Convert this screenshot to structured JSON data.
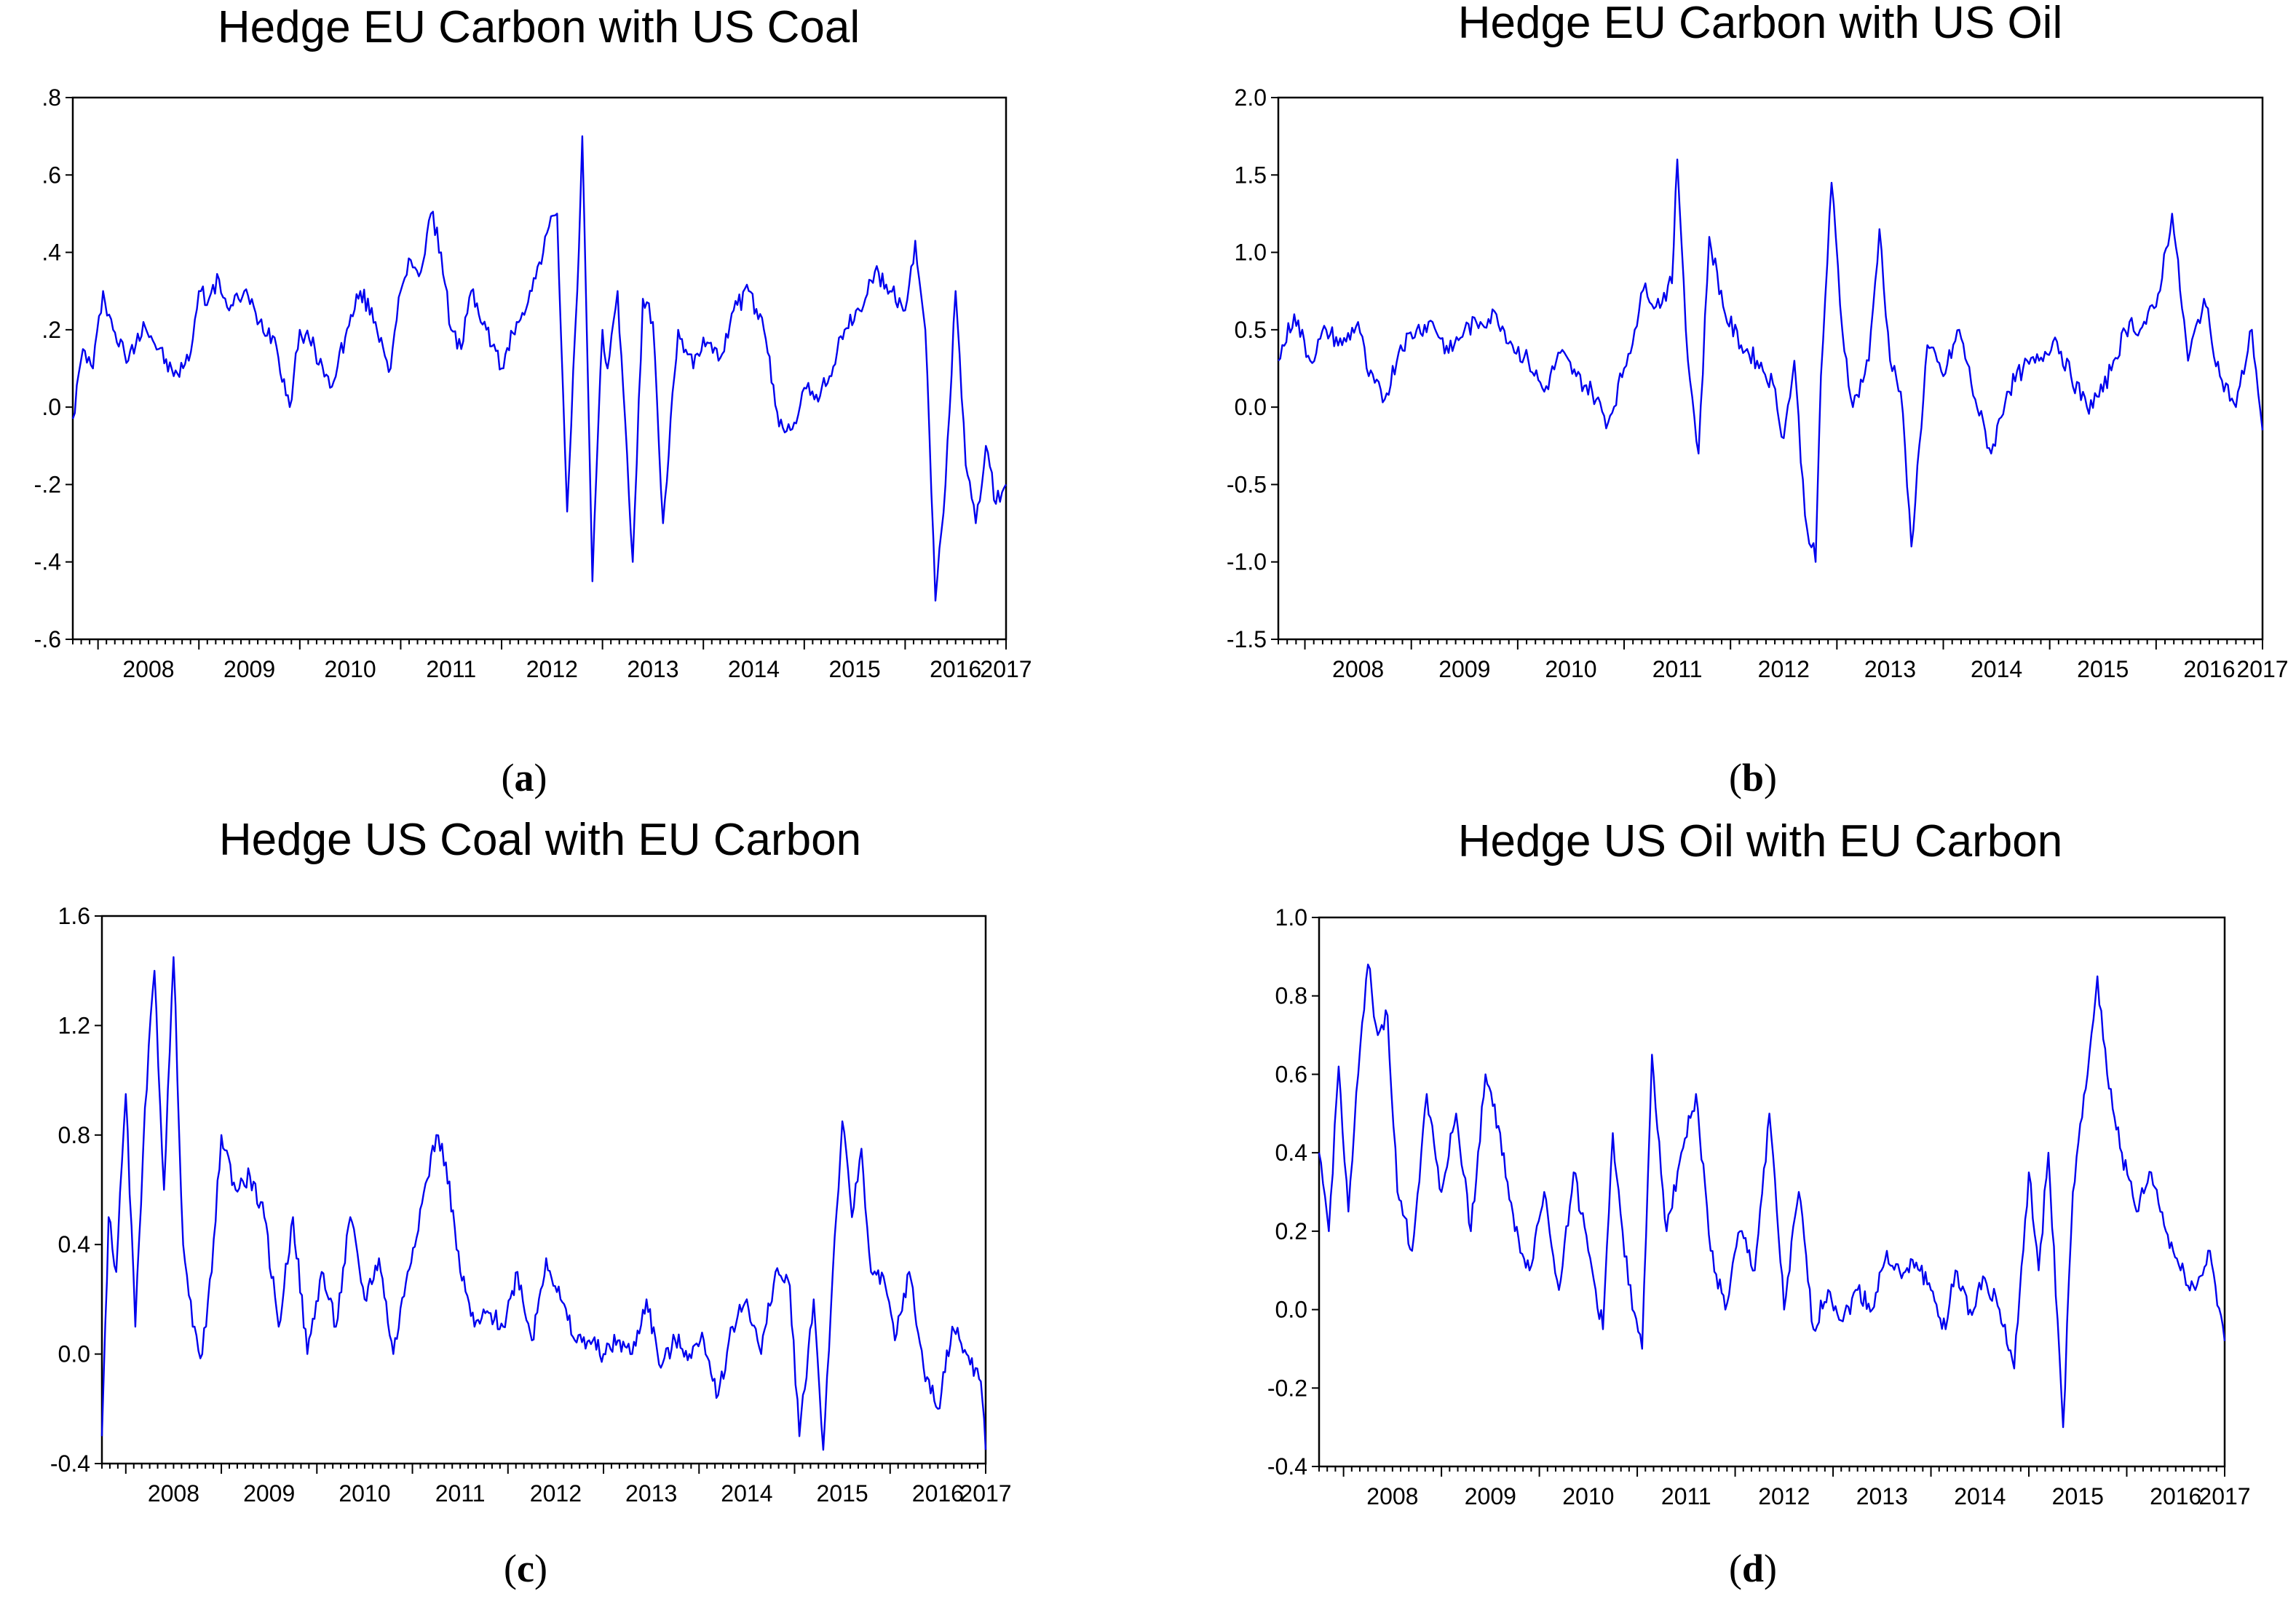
{
  "figure": {
    "panel_labels": [
      "a",
      "b",
      "c",
      "d"
    ]
  },
  "style": {
    "line_color": "#0000ee",
    "frame_color": "#000000",
    "background": "#ffffff"
  },
  "chart_data": [
    {
      "type": "line",
      "panel": "a",
      "title": "Hedge EU Carbon with US Coal",
      "xlabel": "",
      "ylabel": "",
      "x_tick_labels": [
        "2008",
        "2009",
        "2010",
        "2011",
        "2012",
        "2013",
        "2014",
        "2015",
        "2016",
        "2017"
      ],
      "y_ticks": [
        -0.6,
        -0.4,
        -0.2,
        0.0,
        0.2,
        0.4,
        0.6,
        0.8
      ],
      "y_tick_labels": [
        "-.6",
        "-.4",
        "-.2",
        ".0",
        ".2",
        ".4",
        ".6",
        ".8"
      ],
      "xlim": [
        2007.75,
        2017.0
      ],
      "ylim": [
        -0.6,
        0.8
      ],
      "grid": false,
      "series": [
        {
          "name": "Hedge EU Carbon with US Coal",
          "x": [
            2007.75,
            2007.85,
            2007.95,
            2008.05,
            2008.15,
            2008.3,
            2008.45,
            2008.6,
            2008.75,
            2008.9,
            2009.0,
            2009.1,
            2009.2,
            2009.3,
            2009.45,
            2009.6,
            2009.75,
            2009.9,
            2010.0,
            2010.15,
            2010.3,
            2010.45,
            2010.6,
            2010.75,
            2010.9,
            2011.0,
            2011.1,
            2011.2,
            2011.3,
            2011.4,
            2011.5,
            2011.6,
            2011.7,
            2011.85,
            2012.0,
            2012.15,
            2012.3,
            2012.45,
            2012.55,
            2012.65,
            2012.75,
            2012.8,
            2012.9,
            2013.0,
            2013.05,
            2013.15,
            2013.3,
            2013.4,
            2013.5,
            2013.6,
            2013.75,
            2013.9,
            2014.0,
            2014.15,
            2014.3,
            2014.45,
            2014.6,
            2014.75,
            2014.9,
            2015.0,
            2015.1,
            2015.25,
            2015.4,
            2015.55,
            2015.7,
            2015.85,
            2016.0,
            2016.1,
            2016.2,
            2016.3,
            2016.4,
            2016.5,
            2016.6,
            2016.7,
            2016.8,
            2016.9,
            2017.0
          ],
          "values": [
            -0.03,
            0.15,
            0.1,
            0.3,
            0.2,
            0.12,
            0.22,
            0.15,
            0.08,
            0.12,
            0.3,
            0.28,
            0.33,
            0.25,
            0.3,
            0.22,
            0.18,
            0.0,
            0.2,
            0.15,
            0.05,
            0.18,
            0.3,
            0.22,
            0.1,
            0.3,
            0.38,
            0.35,
            0.5,
            0.4,
            0.2,
            0.15,
            0.3,
            0.2,
            0.1,
            0.22,
            0.3,
            0.45,
            0.5,
            -0.27,
            0.3,
            0.7,
            -0.45,
            0.2,
            0.1,
            0.3,
            -0.4,
            0.28,
            0.22,
            -0.3,
            0.2,
            0.1,
            0.18,
            0.12,
            0.25,
            0.3,
            0.2,
            -0.05,
            -0.04,
            0.05,
            0.02,
            0.08,
            0.2,
            0.25,
            0.35,
            0.3,
            0.25,
            0.43,
            0.2,
            -0.5,
            -0.2,
            0.3,
            -0.15,
            -0.3,
            -0.1,
            -0.25,
            -0.2
          ]
        }
      ]
    },
    {
      "type": "line",
      "panel": "b",
      "title": "Hedge EU Carbon with US Oil",
      "xlabel": "",
      "ylabel": "",
      "x_tick_labels": [
        "2008",
        "2009",
        "2010",
        "2011",
        "2012",
        "2013",
        "2014",
        "2015",
        "2016",
        "2017"
      ],
      "y_ticks": [
        -1.5,
        -1.0,
        -0.5,
        0.0,
        0.5,
        1.0,
        1.5,
        2.0
      ],
      "y_tick_labels": [
        "-1.5",
        "-1.0",
        "-0.5",
        "0.0",
        "0.5",
        "1.0",
        "1.5",
        "2.0"
      ],
      "xlim": [
        2007.75,
        2017.0
      ],
      "ylim": [
        -1.5,
        2.0
      ],
      "grid": false,
      "series": [
        {
          "name": "Hedge EU Carbon with US Oil",
          "x": [
            2007.75,
            2007.9,
            2008.05,
            2008.2,
            2008.35,
            2008.5,
            2008.6,
            2008.75,
            2008.9,
            2009.05,
            2009.2,
            2009.35,
            2009.5,
            2009.65,
            2009.8,
            2009.95,
            2010.1,
            2010.25,
            2010.4,
            2010.55,
            2010.7,
            2010.85,
            2011.0,
            2011.1,
            2011.2,
            2011.3,
            2011.45,
            2011.5,
            2011.6,
            2011.7,
            2011.8,
            2011.95,
            2012.1,
            2012.25,
            2012.4,
            2012.5,
            2012.6,
            2012.7,
            2012.8,
            2012.85,
            2012.95,
            2013.05,
            2013.15,
            2013.3,
            2013.4,
            2013.5,
            2013.6,
            2013.7,
            2013.85,
            2014.0,
            2014.15,
            2014.3,
            2014.45,
            2014.6,
            2014.75,
            2014.9,
            2015.05,
            2015.2,
            2015.35,
            2015.5,
            2015.6,
            2015.75,
            2015.85,
            2016.0,
            2016.15,
            2016.3,
            2016.45,
            2016.6,
            2016.75,
            2016.9,
            2017.0
          ],
          "values": [
            0.3,
            0.6,
            0.3,
            0.5,
            0.4,
            0.55,
            0.2,
            0.05,
            0.4,
            0.5,
            0.55,
            0.35,
            0.5,
            0.55,
            0.6,
            0.4,
            0.3,
            0.1,
            0.35,
            0.2,
            0.1,
            -0.1,
            0.25,
            0.5,
            0.8,
            0.65,
            0.8,
            1.6,
            0.3,
            -0.3,
            1.1,
            0.6,
            0.4,
            0.3,
            0.15,
            -0.2,
            0.3,
            -0.7,
            -1.0,
            0.2,
            1.45,
            0.5,
            0.0,
            0.3,
            1.15,
            0.3,
            0.1,
            -0.9,
            0.4,
            0.2,
            0.5,
            0.05,
            -0.3,
            0.1,
            0.25,
            0.3,
            0.45,
            0.2,
            0.0,
            0.1,
            0.3,
            0.55,
            0.5,
            0.65,
            1.25,
            0.3,
            0.7,
            0.2,
            0.0,
            0.5,
            -0.15
          ]
        }
      ]
    },
    {
      "type": "line",
      "panel": "c",
      "title": "Hedge US Coal with EU Carbon",
      "xlabel": "",
      "ylabel": "",
      "x_tick_labels": [
        "2008",
        "2009",
        "2010",
        "2011",
        "2012",
        "2013",
        "2014",
        "2015",
        "2016",
        "2017"
      ],
      "y_ticks": [
        -0.4,
        0.0,
        0.4,
        0.8,
        1.2,
        1.6
      ],
      "y_tick_labels": [
        "-0.4",
        "0.0",
        "0.4",
        "0.8",
        "1.2",
        "1.6"
      ],
      "xlim": [
        2007.75,
        2017.0
      ],
      "ylim": [
        -0.4,
        1.6
      ],
      "grid": false,
      "series": [
        {
          "name": "Hedge US Coal with EU Carbon",
          "x": [
            2007.75,
            2007.82,
            2007.9,
            2008.0,
            2008.1,
            2008.2,
            2008.3,
            2008.4,
            2008.5,
            2008.6,
            2008.7,
            2008.8,
            2008.9,
            2009.0,
            2009.15,
            2009.3,
            2009.45,
            2009.6,
            2009.75,
            2009.9,
            2010.05,
            2010.2,
            2010.35,
            2010.5,
            2010.65,
            2010.8,
            2010.95,
            2011.1,
            2011.25,
            2011.35,
            2011.5,
            2011.65,
            2011.8,
            2011.95,
            2012.1,
            2012.25,
            2012.4,
            2012.55,
            2012.7,
            2012.85,
            2013.0,
            2013.15,
            2013.3,
            2013.45,
            2013.6,
            2013.75,
            2013.9,
            2014.05,
            2014.2,
            2014.35,
            2014.5,
            2014.65,
            2014.8,
            2014.95,
            2015.05,
            2015.2,
            2015.3,
            2015.4,
            2015.5,
            2015.6,
            2015.7,
            2015.8,
            2015.95,
            2016.05,
            2016.2,
            2016.35,
            2016.5,
            2016.65,
            2016.8,
            2016.95,
            2017.0
          ],
          "values": [
            -0.3,
            0.5,
            0.3,
            0.95,
            0.1,
            0.9,
            1.4,
            0.6,
            1.45,
            0.4,
            0.1,
            0.0,
            0.3,
            0.8,
            0.6,
            0.65,
            0.5,
            0.1,
            0.5,
            0.0,
            0.3,
            0.1,
            0.5,
            0.2,
            0.35,
            0.0,
            0.3,
            0.55,
            0.8,
            0.7,
            0.3,
            0.1,
            0.15,
            0.1,
            0.3,
            0.05,
            0.35,
            0.2,
            0.05,
            0.05,
            0.0,
            0.05,
            0.0,
            0.2,
            -0.05,
            0.05,
            0.0,
            0.05,
            -0.15,
            0.1,
            0.2,
            0.0,
            0.3,
            0.25,
            -0.3,
            0.2,
            -0.35,
            0.3,
            0.85,
            0.5,
            0.75,
            0.3,
            0.25,
            0.05,
            0.3,
            -0.05,
            -0.2,
            0.1,
            0.0,
            -0.1,
            -0.35
          ]
        }
      ]
    },
    {
      "type": "line",
      "panel": "d",
      "title": "Hedge US Oil with EU Carbon",
      "xlabel": "",
      "ylabel": "",
      "x_tick_labels": [
        "2008",
        "2009",
        "2010",
        "2011",
        "2012",
        "2013",
        "2014",
        "2015",
        "2016",
        "2017"
      ],
      "y_ticks": [
        -0.4,
        -0.2,
        0.0,
        0.2,
        0.4,
        0.6,
        0.8,
        1.0
      ],
      "y_tick_labels": [
        "-0.4",
        "-0.2",
        "0.0",
        "0.2",
        "0.4",
        "0.6",
        "0.8",
        "1.0"
      ],
      "xlim": [
        2007.75,
        2017.0
      ],
      "ylim": [
        -0.4,
        1.0
      ],
      "grid": false,
      "series": [
        {
          "name": "Hedge US Oil with EU Carbon",
          "x": [
            2007.75,
            2007.85,
            2007.95,
            2008.05,
            2008.15,
            2008.25,
            2008.35,
            2008.45,
            2008.55,
            2008.7,
            2008.85,
            2009.0,
            2009.15,
            2009.3,
            2009.45,
            2009.6,
            2009.75,
            2009.9,
            2010.05,
            2010.2,
            2010.35,
            2010.5,
            2010.65,
            2010.75,
            2010.85,
            2010.95,
            2011.05,
            2011.15,
            2011.3,
            2011.45,
            2011.6,
            2011.75,
            2011.9,
            2012.05,
            2012.2,
            2012.35,
            2012.5,
            2012.65,
            2012.8,
            2012.95,
            2013.1,
            2013.25,
            2013.4,
            2013.55,
            2013.7,
            2013.85,
            2014.0,
            2014.15,
            2014.25,
            2014.4,
            2014.55,
            2014.7,
            2014.85,
            2015.0,
            2015.1,
            2015.2,
            2015.35,
            2015.45,
            2015.6,
            2015.7,
            2015.8,
            2015.95,
            2016.1,
            2016.25,
            2016.4,
            2016.55,
            2016.7,
            2016.85,
            2017.0
          ],
          "values": [
            0.4,
            0.2,
            0.62,
            0.25,
            0.6,
            0.88,
            0.7,
            0.75,
            0.3,
            0.15,
            0.55,
            0.3,
            0.5,
            0.2,
            0.6,
            0.45,
            0.2,
            0.1,
            0.3,
            0.05,
            0.35,
            0.15,
            -0.05,
            0.45,
            0.2,
            0.0,
            -0.1,
            0.65,
            0.2,
            0.4,
            0.55,
            0.15,
            0.0,
            0.2,
            0.1,
            0.5,
            0.0,
            0.3,
            -0.05,
            0.05,
            -0.03,
            0.05,
            0.0,
            0.15,
            0.08,
            0.12,
            0.05,
            -0.05,
            0.1,
            0.0,
            0.08,
            0.0,
            -0.15,
            0.35,
            0.1,
            0.4,
            -0.3,
            0.3,
            0.6,
            0.85,
            0.6,
            0.4,
            0.25,
            0.35,
            0.2,
            0.1,
            0.05,
            0.15,
            -0.08
          ]
        }
      ]
    }
  ]
}
